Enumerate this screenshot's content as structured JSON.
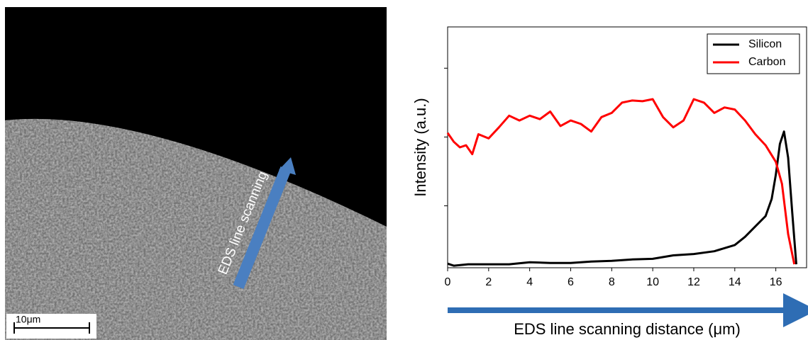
{
  "image": {
    "scale_bar": "10μm",
    "arrow_label": "EDS line scanning"
  },
  "chart_data": {
    "type": "line",
    "xlabel": "EDS line scanning distance (μm)",
    "ylabel": "Intensity (a.u.)",
    "xlim": [
      0,
      17.5
    ],
    "xticks": [
      0,
      2,
      4,
      6,
      8,
      10,
      12,
      14,
      16
    ],
    "ylim": [
      0,
      3.5
    ],
    "yticks": [
      0.9,
      1.9,
      2.9
    ],
    "legend": "top-right",
    "series": [
      {
        "name": "Silicon",
        "color": "#000000",
        "x": [
          0,
          0.3,
          1,
          2,
          3,
          4,
          5,
          6,
          7,
          8,
          9,
          10,
          11,
          12,
          13,
          14,
          14.5,
          15,
          15.5,
          15.8,
          16,
          16.2,
          16.4,
          16.6,
          16.8,
          17
        ],
        "values": [
          0.06,
          0.03,
          0.05,
          0.05,
          0.05,
          0.08,
          0.07,
          0.07,
          0.09,
          0.1,
          0.12,
          0.13,
          0.18,
          0.2,
          0.24,
          0.33,
          0.45,
          0.6,
          0.75,
          1.0,
          1.35,
          1.8,
          1.98,
          1.6,
          0.8,
          0.05
        ]
      },
      {
        "name": "Carbon",
        "color": "#ff0000",
        "x": [
          0,
          0.3,
          0.6,
          0.9,
          1.2,
          1.5,
          2,
          2.5,
          3,
          3.5,
          4,
          4.5,
          5,
          5.5,
          6,
          6.5,
          7,
          7.5,
          8,
          8.5,
          9,
          9.5,
          10,
          10.5,
          11,
          11.5,
          12,
          12.5,
          13,
          13.5,
          14,
          14.5,
          15,
          15.5,
          16,
          16.3,
          16.6,
          16.9
        ],
        "values": [
          1.96,
          1.83,
          1.75,
          1.78,
          1.65,
          1.94,
          1.88,
          2.04,
          2.21,
          2.14,
          2.21,
          2.16,
          2.27,
          2.06,
          2.14,
          2.09,
          1.98,
          2.19,
          2.25,
          2.4,
          2.43,
          2.42,
          2.45,
          2.19,
          2.04,
          2.14,
          2.45,
          2.4,
          2.25,
          2.33,
          2.3,
          2.14,
          1.94,
          1.78,
          1.54,
          1.22,
          0.49,
          0.05
        ]
      }
    ]
  }
}
